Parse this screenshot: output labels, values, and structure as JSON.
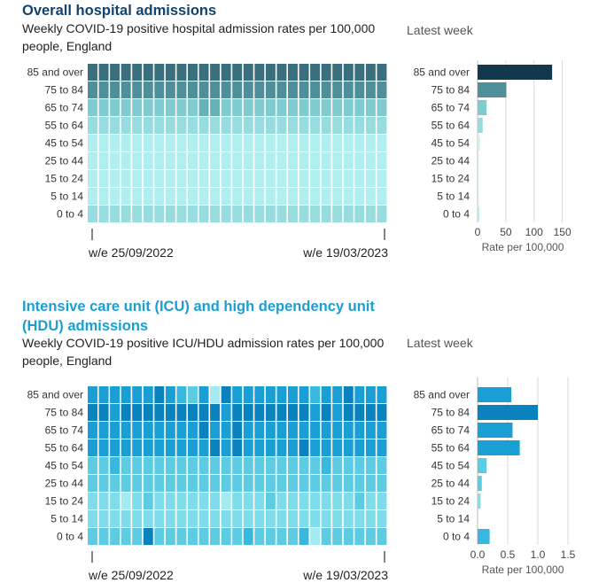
{
  "sections": [
    {
      "title": "Overall hospital admissions",
      "subtitle": "Weekly COVID-19 positive hospital admission rates per 100,000 people, England",
      "side_title": "Latest week"
    },
    {
      "title": "Intensive care unit (ICU) and high dependency unit (HDU) admissions",
      "subtitle": "Weekly COVID-19 positive ICU/HDU admission rates per 100,000 people, England",
      "side_title": "Latest week"
    }
  ],
  "chart_data": [
    {
      "type": "heatmap",
      "rows": [
        "85 and over",
        "75 to 84",
        "65 to 74",
        "55 to 64",
        "45 to 54",
        "25 to 44",
        "15 to 24",
        "5 to 14",
        "0 to 4"
      ],
      "columns_count": 27,
      "x_tick_labels": [
        "w/e 25/09/2022",
        "w/e 19/03/2023"
      ],
      "palette": [
        "#c8f3f2",
        "#b1eeef",
        "#97dde0",
        "#7fcbcf",
        "#66b0b8",
        "#4f8f9a",
        "#3a6f7e",
        "#27505f"
      ],
      "levels": [
        [
          6,
          6,
          6,
          6,
          6,
          6,
          6,
          6,
          6,
          6,
          6,
          6,
          6,
          6,
          6,
          6,
          6,
          6,
          6,
          6,
          6,
          6,
          6,
          6,
          6,
          6,
          6
        ],
        [
          5,
          5,
          5,
          5,
          5,
          5,
          5,
          5,
          5,
          5,
          5,
          5,
          5,
          5,
          5,
          5,
          5,
          5,
          5,
          5,
          5,
          5,
          5,
          5,
          5,
          5,
          5
        ],
        [
          3,
          3,
          3,
          3,
          3,
          3,
          3,
          3,
          3,
          3,
          4,
          4,
          3,
          3,
          3,
          3,
          3,
          3,
          3,
          3,
          3,
          3,
          3,
          3,
          3,
          3,
          3
        ],
        [
          2,
          2,
          2,
          2,
          2,
          2,
          2,
          2,
          2,
          2,
          2,
          2,
          2,
          2,
          2,
          2,
          2,
          2,
          2,
          2,
          2,
          2,
          2,
          2,
          2,
          2,
          2
        ],
        [
          1,
          1,
          1,
          1,
          1,
          1,
          1,
          1,
          1,
          1,
          1,
          1,
          1,
          1,
          1,
          1,
          1,
          1,
          1,
          1,
          1,
          1,
          1,
          1,
          1,
          1,
          1
        ],
        [
          1,
          1,
          1,
          1,
          1,
          1,
          1,
          1,
          1,
          1,
          1,
          1,
          1,
          1,
          1,
          1,
          1,
          1,
          1,
          1,
          1,
          1,
          1,
          1,
          1,
          1,
          1
        ],
        [
          1,
          1,
          1,
          1,
          1,
          1,
          1,
          1,
          1,
          1,
          1,
          1,
          1,
          1,
          1,
          1,
          1,
          1,
          1,
          1,
          1,
          1,
          1,
          1,
          1,
          1,
          1
        ],
        [
          1,
          1,
          1,
          1,
          1,
          1,
          1,
          1,
          1,
          1,
          1,
          1,
          1,
          1,
          1,
          1,
          1,
          1,
          1,
          1,
          1,
          1,
          1,
          1,
          1,
          1,
          1
        ],
        [
          2,
          2,
          2,
          2,
          2,
          2,
          2,
          2,
          2,
          2,
          2,
          2,
          2,
          2,
          2,
          2,
          2,
          2,
          2,
          2,
          2,
          2,
          2,
          2,
          2,
          2,
          2
        ]
      ],
      "bar": {
        "title": "Latest week",
        "values": [
          132,
          51,
          16,
          9,
          4,
          1,
          0.5,
          0.5,
          3
        ],
        "colors": [
          "#12384e",
          "#4f8f9a",
          "#7fcbcf",
          "#97dde0",
          "#c8f3f2",
          "#c8f3f2",
          "#c8f3f2",
          "#c8f3f2",
          "#b1eeef"
        ],
        "xlim": [
          0,
          160
        ],
        "ticks": [
          0,
          50,
          100,
          150
        ],
        "xlabel": "Rate per 100,000"
      }
    },
    {
      "type": "heatmap",
      "rows": [
        "85 and over",
        "75 to 84",
        "65 to 74",
        "55 to 64",
        "45 to 54",
        "25 to 44",
        "15 to 24",
        "5 to 14",
        "0 to 4"
      ],
      "columns_count": 27,
      "x_tick_labels": [
        "w/e 25/09/2022",
        "w/e 19/03/2023"
      ],
      "palette": [
        "#c9f5f7",
        "#a5eaf1",
        "#7fdcea",
        "#5dcbe2",
        "#39b8dd",
        "#1a9fd4",
        "#0a82be"
      ],
      "levels": [
        [
          5,
          5,
          5,
          5,
          5,
          5,
          6,
          5,
          4,
          3,
          5,
          1,
          6,
          5,
          5,
          5,
          5,
          5,
          5,
          5,
          4,
          5,
          5,
          6,
          5,
          5,
          5
        ],
        [
          6,
          6,
          5,
          6,
          6,
          6,
          6,
          6,
          6,
          6,
          6,
          6,
          5,
          6,
          6,
          6,
          6,
          6,
          6,
          6,
          5,
          6,
          5,
          6,
          6,
          6,
          6
        ],
        [
          5,
          5,
          5,
          5,
          5,
          5,
          5,
          5,
          5,
          5,
          6,
          5,
          5,
          6,
          5,
          5,
          5,
          5,
          5,
          5,
          5,
          5,
          5,
          5,
          5,
          5,
          5
        ],
        [
          5,
          5,
          5,
          5,
          5,
          5,
          5,
          5,
          5,
          5,
          5,
          6,
          5,
          6,
          5,
          5,
          5,
          5,
          5,
          6,
          5,
          5,
          5,
          5,
          5,
          5,
          5
        ],
        [
          3,
          3,
          4,
          3,
          3,
          3,
          3,
          3,
          3,
          3,
          3,
          3,
          3,
          3,
          3,
          3,
          3,
          3,
          3,
          3,
          3,
          4,
          3,
          3,
          3,
          3,
          3
        ],
        [
          3,
          3,
          3,
          3,
          3,
          3,
          3,
          3,
          3,
          3,
          3,
          3,
          3,
          3,
          3,
          3,
          3,
          3,
          3,
          3,
          3,
          3,
          3,
          3,
          3,
          3,
          3
        ],
        [
          2,
          2,
          2,
          1,
          2,
          3,
          2,
          2,
          2,
          2,
          2,
          2,
          1,
          2,
          2,
          2,
          3,
          2,
          2,
          2,
          2,
          2,
          2,
          2,
          3,
          2,
          2
        ],
        [
          2,
          2,
          2,
          2,
          2,
          2,
          2,
          2,
          2,
          2,
          2,
          2,
          2,
          2,
          2,
          2,
          2,
          2,
          2,
          2,
          2,
          2,
          2,
          2,
          2,
          2,
          2
        ],
        [
          3,
          3,
          3,
          3,
          3,
          6,
          3,
          3,
          3,
          3,
          3,
          3,
          3,
          3,
          4,
          3,
          3,
          3,
          3,
          4,
          1,
          3,
          3,
          3,
          3,
          3,
          3
        ]
      ],
      "bar": {
        "title": "Latest week",
        "values": [
          0.56,
          1.0,
          0.58,
          0.7,
          0.15,
          0.07,
          0.05,
          0.0,
          0.2
        ],
        "colors": [
          "#1a9fd4",
          "#0a82be",
          "#1a9fd4",
          "#1a9fd4",
          "#5dcbe2",
          "#5dcbe2",
          "#7fdcea",
          "#a5eaf1",
          "#39b8dd"
        ],
        "xlim": [
          0,
          1.5
        ],
        "ticks": [
          "0.0",
          "0.5",
          "1.0",
          "1.5"
        ],
        "xlabel": "Rate per 100,000"
      }
    }
  ]
}
